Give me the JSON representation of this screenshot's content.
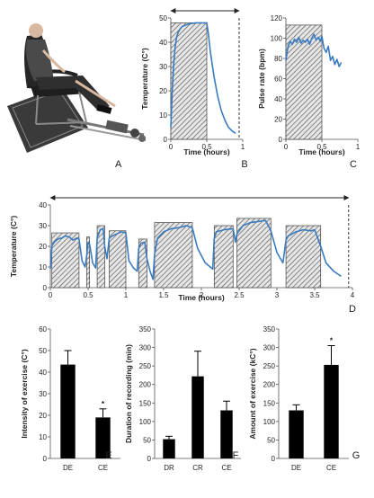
{
  "chart_data": [
    {
      "panel": "A",
      "type": "photo",
      "icons": [
        "person-seated-icon",
        "chair-icon",
        "pedal-exerciser-icon"
      ]
    },
    {
      "panel": "B",
      "type": "line",
      "xlabel": "Time (hours)",
      "ylabel": "Temperature (C°)",
      "xlim": [
        0,
        1
      ],
      "ylim": [
        0,
        50
      ],
      "xticks": [
        "0",
        "0.5",
        "1"
      ],
      "yticks": [
        "0",
        "10",
        "20",
        "30",
        "40",
        "50"
      ],
      "exercise_bouts": [
        {
          "x0": 0.0,
          "x1": 0.5,
          "y": 48
        }
      ],
      "arrow_span": [
        0,
        0.95
      ],
      "series": [
        {
          "x": [
            0,
            0.02,
            0.04,
            0.06,
            0.08,
            0.1,
            0.13,
            0.16,
            0.2,
            0.25,
            0.3,
            0.35,
            0.4,
            0.45,
            0.5,
            0.52,
            0.55,
            0.6,
            0.65,
            0.7,
            0.75,
            0.8,
            0.85,
            0.9
          ],
          "y": [
            5,
            20,
            31,
            38,
            42,
            44,
            45.5,
            46.5,
            47,
            47.5,
            47.8,
            48,
            48,
            48,
            48,
            44,
            36,
            26,
            18,
            12,
            8,
            5,
            3.5,
            2.5
          ]
        }
      ]
    },
    {
      "panel": "C",
      "type": "line",
      "xlabel": "Time (hours)",
      "ylabel": "Pulse rate (bpm)",
      "xlim": [
        0,
        1
      ],
      "ylim": [
        0,
        120
      ],
      "xticks": [
        "0",
        "0.5",
        "1"
      ],
      "yticks": [
        "0",
        "20",
        "40",
        "60",
        "80",
        "100",
        "120"
      ],
      "exercise_bouts": [
        {
          "x0": 0.0,
          "x1": 0.5,
          "y": 113
        }
      ],
      "series": [
        {
          "x": [
            0,
            0.03,
            0.06,
            0.09,
            0.12,
            0.15,
            0.18,
            0.21,
            0.24,
            0.27,
            0.3,
            0.33,
            0.36,
            0.39,
            0.42,
            0.45,
            0.48,
            0.5,
            0.53,
            0.56,
            0.59,
            0.62,
            0.65,
            0.68,
            0.71,
            0.74,
            0.77
          ],
          "y": [
            78,
            92,
            97,
            94,
            99,
            96,
            101,
            95,
            98,
            96,
            99,
            94,
            100,
            104,
            98,
            101,
            97,
            102,
            90,
            86,
            92,
            78,
            82,
            74,
            79,
            72,
            76
          ]
        }
      ]
    },
    {
      "panel": "D",
      "type": "line",
      "xlabel": "Time (hours)",
      "ylabel": "Temperature (C°)",
      "xlim": [
        0,
        4
      ],
      "ylim": [
        0,
        40
      ],
      "xticks": [
        "0",
        "0.5",
        "1",
        "1.5",
        "2",
        "2.5",
        "3",
        "3.5",
        "4"
      ],
      "yticks": [
        "0",
        "10",
        "20",
        "30",
        "40"
      ],
      "arrow_span": [
        0,
        3.95
      ],
      "exercise_bouts": [
        {
          "x0": 0.02,
          "x1": 0.38,
          "y": 26.5
        },
        {
          "x0": 0.48,
          "x1": 0.52,
          "y": 24.5
        },
        {
          "x0": 0.62,
          "x1": 0.72,
          "y": 30
        },
        {
          "x0": 0.78,
          "x1": 1.0,
          "y": 27.5
        },
        {
          "x0": 1.17,
          "x1": 1.28,
          "y": 23.5
        },
        {
          "x0": 1.38,
          "x1": 1.88,
          "y": 31.5
        },
        {
          "x0": 2.17,
          "x1": 2.42,
          "y": 30
        },
        {
          "x0": 2.47,
          "x1": 2.92,
          "y": 33.5
        },
        {
          "x0": 3.12,
          "x1": 3.58,
          "y": 30
        }
      ],
      "series": [
        {
          "x": [
            0,
            0.02,
            0.05,
            0.1,
            0.15,
            0.2,
            0.25,
            0.3,
            0.35,
            0.38,
            0.42,
            0.46,
            0.48,
            0.5,
            0.52,
            0.56,
            0.6,
            0.62,
            0.66,
            0.7,
            0.72,
            0.75,
            0.78,
            0.82,
            0.88,
            0.94,
            1.0,
            1.04,
            1.1,
            1.15,
            1.17,
            1.2,
            1.25,
            1.28,
            1.32,
            1.36,
            1.38,
            1.42,
            1.5,
            1.6,
            1.7,
            1.8,
            1.88,
            1.95,
            2.05,
            2.15,
            2.17,
            2.2,
            2.3,
            2.42,
            2.45,
            2.47,
            2.55,
            2.65,
            2.75,
            2.85,
            2.92,
            3.0,
            3.08,
            3.12,
            3.15,
            3.25,
            3.35,
            3.45,
            3.5,
            3.58,
            3.65,
            3.75,
            3.85
          ],
          "y": [
            9,
            20,
            22,
            23.5,
            24,
            25,
            24.5,
            23,
            24,
            23.5,
            13,
            10,
            15,
            22,
            21,
            12,
            9.5,
            24,
            28,
            28.5,
            20,
            14,
            24,
            25,
            26,
            27,
            26.5,
            13,
            9.5,
            8,
            19,
            21.5,
            22,
            14,
            8,
            4,
            16,
            24,
            27,
            28.5,
            29,
            30,
            29,
            19,
            12,
            9,
            24,
            27,
            28,
            28.5,
            22,
            26,
            30,
            31.5,
            32,
            32.5,
            27.5,
            17,
            12,
            23,
            25,
            27,
            28,
            27.5,
            28,
            20,
            12,
            8,
            5.5
          ]
        }
      ]
    },
    {
      "panel": "E",
      "type": "bar",
      "ylabel": "Intensity of exercise (C°)",
      "categories": [
        "DE",
        "CE"
      ],
      "values": [
        43.5,
        19
      ],
      "errors": [
        6.5,
        4
      ],
      "significance": [
        "",
        "*"
      ],
      "ylim": [
        0,
        60
      ],
      "yticks": [
        "0",
        "10",
        "20",
        "30",
        "40",
        "50",
        "60"
      ]
    },
    {
      "panel": "F",
      "type": "bar",
      "ylabel": "Duration of recording (min)",
      "categories": [
        "DR",
        "CR",
        "CE"
      ],
      "values": [
        52,
        222,
        130
      ],
      "errors": [
        8,
        68,
        25
      ],
      "significance": [
        "",
        "",
        ""
      ],
      "ylim": [
        0,
        350
      ],
      "yticks": [
        "0",
        "50",
        "100",
        "150",
        "200",
        "250",
        "300",
        "350"
      ]
    },
    {
      "panel": "G",
      "type": "bar",
      "ylabel": "Amount of exercise (kC°)",
      "categories": [
        "DE",
        "CE"
      ],
      "values": [
        130,
        253
      ],
      "errors": [
        15,
        52
      ],
      "significance": [
        "",
        "*"
      ],
      "ylim": [
        0,
        350
      ],
      "yticks": [
        "0",
        "50",
        "100",
        "150",
        "200",
        "250",
        "300",
        "350"
      ]
    }
  ]
}
